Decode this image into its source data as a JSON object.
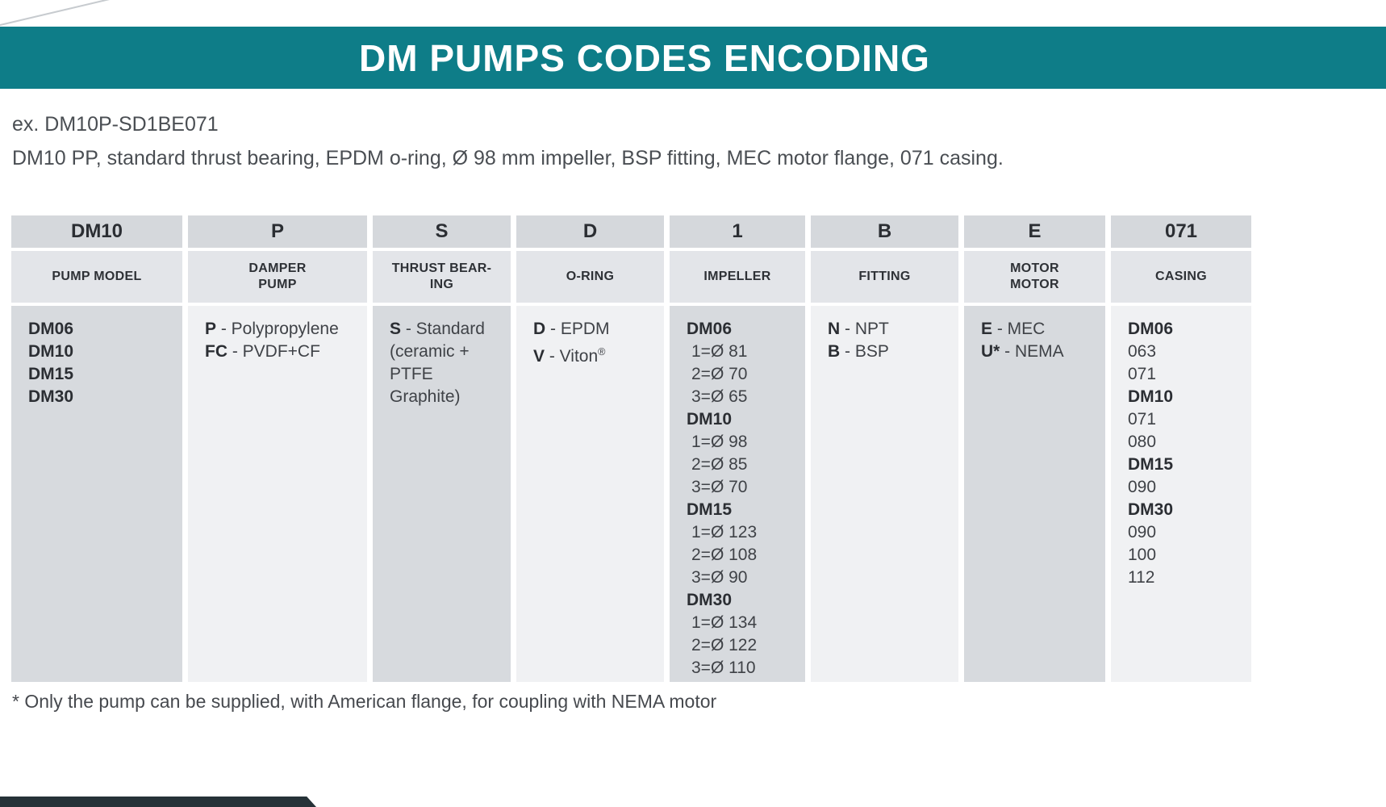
{
  "banner": {
    "title": "DM PUMPS CODES ENCODING"
  },
  "example": {
    "line1": "ex. DM10P-SD1BE071",
    "line2": "DM10 PP, standard thrust bearing, EPDM o-ring, Ø 98 mm impeller, BSP fitting, MEC motor flange, 071 casing."
  },
  "table": {
    "columns": [
      {
        "key": "pump-model",
        "code": "DM10",
        "header": "PUMP MODEL",
        "lines": [
          {
            "b": "DM06"
          },
          {
            "b": "DM10"
          },
          {
            "b": "DM15"
          },
          {
            "b": "DM30"
          }
        ]
      },
      {
        "key": "damper-pump",
        "code": "P",
        "header": "DAMPER\nPUMP",
        "lines": [
          {
            "b": "P",
            "t": "- Polypropylene"
          },
          {
            "b": "FC",
            "t": "- PVDF+CF"
          }
        ]
      },
      {
        "key": "thrust-bearing",
        "code": "S",
        "header": "THRUST BEAR-\nING",
        "lines": [
          {
            "b": "S",
            "t": "- Standard"
          },
          {
            "t": "(ceramic +"
          },
          {
            "t": "PTFE Graphite)"
          }
        ]
      },
      {
        "key": "o-ring",
        "code": "D",
        "header": "O-RING",
        "lines": [
          {
            "b": "D",
            "t": "- EPDM"
          },
          {
            "b": "V",
            "t": "- Viton",
            "sup": "®"
          }
        ]
      },
      {
        "key": "impeller",
        "code": "1",
        "header": "IMPELLER",
        "lines": [
          {
            "b": "DM06"
          },
          {
            "t": "1=Ø 81",
            "indent": true
          },
          {
            "t": "2=Ø 70",
            "indent": true
          },
          {
            "t": "3=Ø 65",
            "indent": true
          },
          {
            "b": "DM10"
          },
          {
            "t": "1=Ø 98",
            "indent": true
          },
          {
            "t": "2=Ø 85",
            "indent": true
          },
          {
            "t": "3=Ø 70",
            "indent": true
          },
          {
            "b": "DM15"
          },
          {
            "t": "1=Ø 123",
            "indent": true
          },
          {
            "t": "2=Ø 108",
            "indent": true
          },
          {
            "t": "3=Ø 90",
            "indent": true
          },
          {
            "b": "DM30"
          },
          {
            "t": "1=Ø 134",
            "indent": true
          },
          {
            "t": "2=Ø 122",
            "indent": true
          },
          {
            "t": "3=Ø 110",
            "indent": true
          }
        ]
      },
      {
        "key": "fitting",
        "code": "B",
        "header": "FITTING",
        "lines": [
          {
            "b": "N",
            "t": "- NPT"
          },
          {
            "b": "B",
            "t": "- BSP"
          }
        ]
      },
      {
        "key": "motor-flange",
        "code": "E",
        "header": "MOTOR\nMOTOR",
        "lines": [
          {
            "b": "E",
            "t": "- MEC"
          },
          {
            "b": "U*",
            "t": "- NEMA"
          }
        ]
      },
      {
        "key": "casing",
        "code": "071",
        "header": "CASING",
        "lines": [
          {
            "b": "DM06"
          },
          {
            "t": "063"
          },
          {
            "t": "071"
          },
          {
            "b": "DM10"
          },
          {
            "t": "071"
          },
          {
            "t": "080"
          },
          {
            "b": "DM15"
          },
          {
            "t": "090"
          },
          {
            "b": "DM30"
          },
          {
            "t": "090"
          },
          {
            "t": "100"
          },
          {
            "t": "112"
          }
        ]
      }
    ]
  },
  "footnote": "* Only the pump can be supplied, with American flange, for coupling with NEMA motor",
  "colors": {
    "banner": "#0e7d88",
    "headerRow": "#d5d8dc",
    "subheaderRow": "#e3e5e9",
    "colDark": "#d7dade",
    "colLight": "#f0f1f3",
    "text": "#3a3d42",
    "bottomBar": "#263238"
  }
}
